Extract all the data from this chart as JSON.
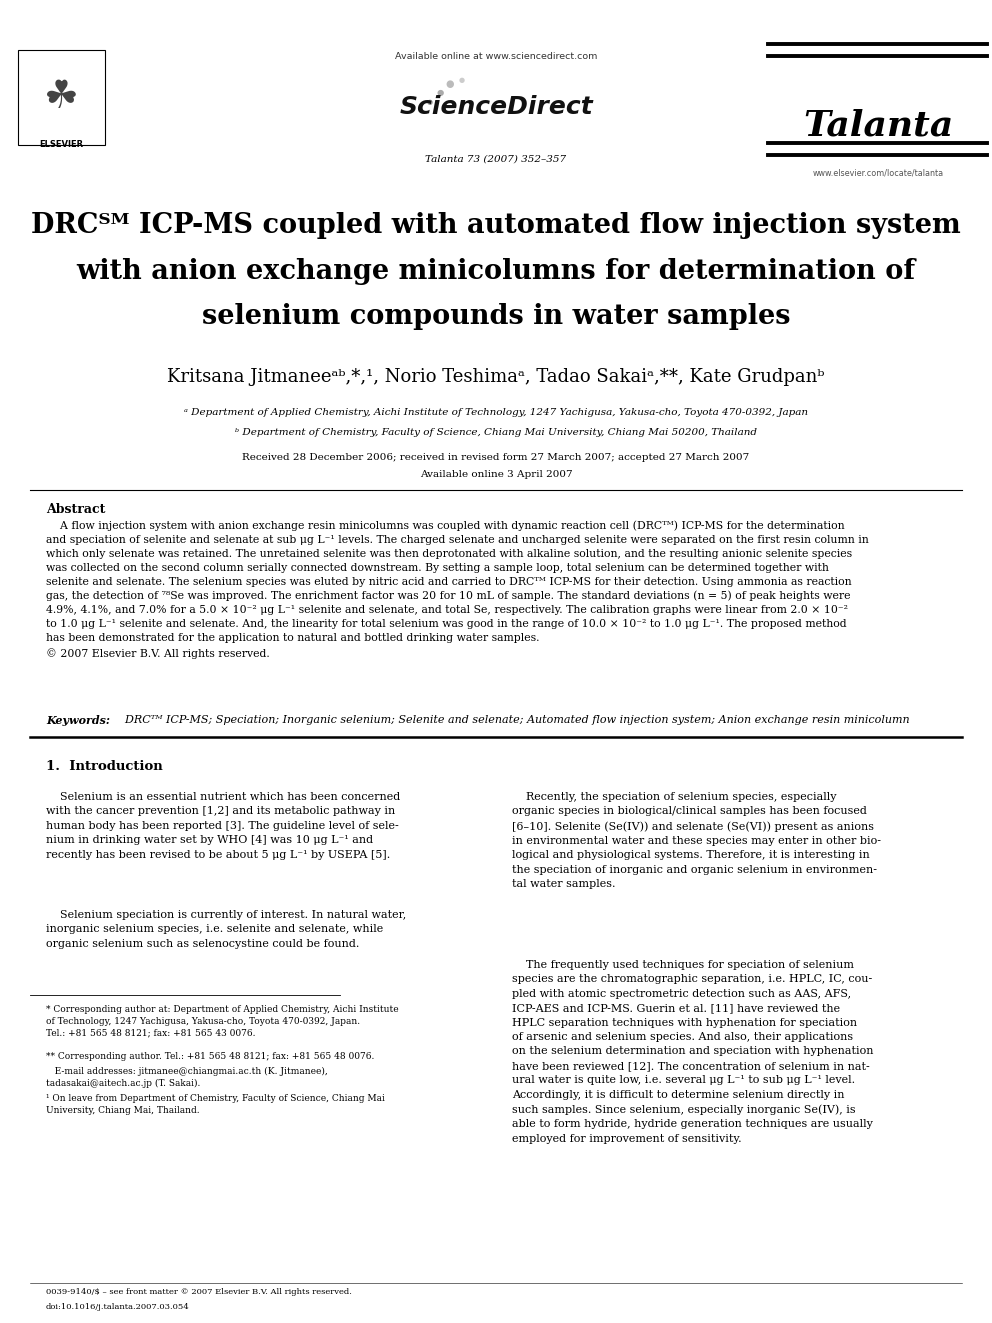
{
  "bg_color": "#ffffff",
  "header_available": "Available online at www.sciencedirect.com",
  "header_journal_ref": "Talanta 73 (2007) 352–357",
  "header_journal_name": "Talanta",
  "header_journal_url": "www.elsevier.com/locate/talanta",
  "header_elsevier": "ELSEVIER",
  "title_line1": "DRCᵀᴹ ICP-MS coupled with automated flow injection system",
  "title_line2": "with anion exchange minicolumns for determination of",
  "title_line3": "selenium compounds in water samples",
  "authors_line": "Kritsana Jitmaneeᵃᵇ,*,¹, Norio Teshimaᵃ, Tadao Sakaiᵃ,**, Kate Grudpanᵇ",
  "affil_a": "ᵃ Department of Applied Chemistry, Aichi Institute of Technology, 1247 Yachigusa, Yakusa-cho, Toyota 470-0392, Japan",
  "affil_b": "ᵇ Department of Chemistry, Faculty of Science, Chiang Mai University, Chiang Mai 50200, Thailand",
  "received": "Received 28 December 2006; received in revised form 27 March 2007; accepted 27 March 2007",
  "available": "Available online 3 April 2007",
  "abstract_title": "Abstract",
  "abstract_text": "    A flow injection system with anion exchange resin minicolumns was coupled with dynamic reaction cell (DRCᵀᴹ) ICP-MS for the determination\nand speciation of selenite and selenate at sub μg L⁻¹ levels. The charged selenate and uncharged selenite were separated on the first resin column in\nwhich only selenate was retained. The unretained selenite was then deprotonated with alkaline solution, and the resulting anionic selenite species\nwas collected on the second column serially connected downstream. By setting a sample loop, total selenium can be determined together with\nselenite and selenate. The selenium species was eluted by nitric acid and carried to DRCᵀᴹ ICP-MS for their detection. Using ammonia as reaction\ngas, the detection of ⁷⁸Se was improved. The enrichment factor was 20 for 10 mL of sample. The standard deviations (n = 5) of peak heights were\n4.9%, 4.1%, and 7.0% for a 5.0 × 10⁻² μg L⁻¹ selenite and selenate, and total Se, respectively. The calibration graphs were linear from 2.0 × 10⁻²\nto 1.0 μg L⁻¹ selenite and selenate. And, the linearity for total selenium was good in the range of 10.0 × 10⁻² to 1.0 μg L⁻¹. The proposed method\nhas been demonstrated for the application to natural and bottled drinking water samples.\n© 2007 Elsevier B.V. All rights reserved.",
  "keywords_label": "Keywords:",
  "keywords_text": "  DRCᵀᴹ ICP-MS; Speciation; Inorganic selenium; Selenite and selenate; Automated flow injection system; Anion exchange resin minicolumn",
  "section1_title": "1.  Introduction",
  "intro_left_p1": "    Selenium is an essential nutrient which has been concerned\nwith the cancer prevention [1,2] and its metabolic pathway in\nhuman body has been reported [3]. The guideline level of sele-\nnium in drinking water set by WHO [4] was 10 μg L⁻¹ and\nrecently has been revised to be about 5 μg L⁻¹ by USEPA [5].",
  "intro_left_p2": "    Selenium speciation is currently of interest. In natural water,\ninorganic selenium species, i.e. selenite and selenate, while\norganic selenium such as selenocystine could be found.",
  "intro_right_p1": "    Recently, the speciation of selenium species, especially\norganic species in biological/clinical samples has been focused\n[6–10]. Selenite (Se(IV)) and selenate (Se(VI)) present as anions\nin environmental water and these species may enter in other bio-\nlogical and physiological systems. Therefore, it is interesting in\nthe speciation of inorganic and organic selenium in environmen-\ntal water samples.",
  "intro_right_p2": "    The frequently used techniques for speciation of selenium\nspecies are the chromatographic separation, i.e. HPLC, IC, cou-\npled with atomic spectrometric detection such as AAS, AFS,\nICP-AES and ICP-MS. Guerin et al. [11] have reviewed the\nHPLC separation techniques with hyphenation for speciation\nof arsenic and selenium species. And also, their applications\non the selenium determination and speciation with hyphenation\nhave been reviewed [12]. The concentration of selenium in nat-\nural water is quite low, i.e. several μg L⁻¹ to sub μg L⁻¹ level.\nAccordingly, it is difficult to determine selenium directly in\nsuch samples. Since selenium, especially inorganic Se(IV), is\nable to form hydride, hydride generation techniques are usually\nemployed for improvement of sensitivity.",
  "footnote_star": "* Corresponding author at: Department of Applied Chemistry, Aichi Institute\nof Technology, 1247 Yachigusa, Yakusa-cho, Toyota 470-0392, Japan.\nTel.: +81 565 48 8121; fax: +81 565 43 0076.",
  "footnote_2star": "** Corresponding author. Tel.: +81 565 48 8121; fax: +81 565 48 0076.",
  "footnote_email": "   E-mail addresses: jitmanee@chiangmai.ac.th (K. Jitmanee),\ntadasakai@aitech.ac.jp (T. Sakai).",
  "footnote_1": "¹ On leave from Department of Chemistry, Faculty of Science, Chiang Mai\nUniversity, Chiang Mai, Thailand.",
  "footer_line1": "0039-9140/$ – see front matter © 2007 Elsevier B.V. All rights reserved.",
  "footer_line2": "doi:10.1016/j.talanta.2007.03.054"
}
